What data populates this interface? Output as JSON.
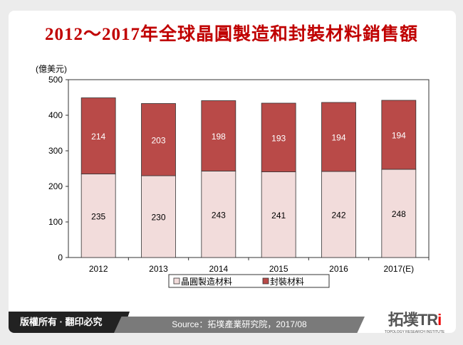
{
  "chart_data": {
    "type": "bar",
    "stacked": true,
    "title": "2012～2017年全球晶圓製造和封裝材料銷售額",
    "ylabel": "(億美元)",
    "xlabel": "",
    "ylim": [
      0,
      500
    ],
    "yticks": [
      0,
      100,
      200,
      300,
      400,
      500
    ],
    "grid": false,
    "legend_position": "bottom",
    "categories": [
      "2012",
      "2013",
      "2014",
      "2015",
      "2016",
      "2017(E)"
    ],
    "series": [
      {
        "name": "晶圓製造材料",
        "values": [
          235,
          230,
          243,
          241,
          242,
          248
        ],
        "color": "#f2dcdb"
      },
      {
        "name": "封裝材料",
        "values": [
          214,
          203,
          198,
          193,
          194,
          194
        ],
        "color": "#b94a48"
      }
    ]
  },
  "footer": {
    "copyright": "版權所有 · 翻印必究",
    "source": "Source：拓墣產業研究院，2017/08",
    "logo_text": "拓墣TRi",
    "logo_sub": "TOPOLOGY RESEARCH INSTITUTE"
  }
}
